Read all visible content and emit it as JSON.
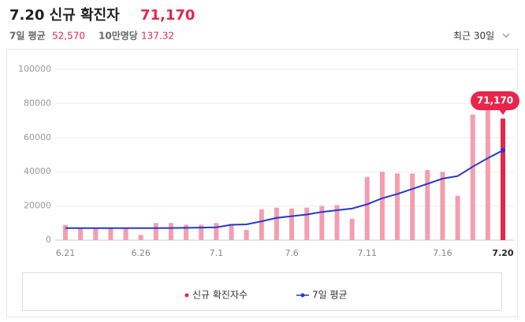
{
  "header": {
    "title": "7.20 신규 확진자",
    "cases": "71,170",
    "avg_label": "7일 평균",
    "avg_value": "52,570",
    "per100k_label": "10만명당",
    "per100k_value": "137.32",
    "range_select": "최근 30일"
  },
  "chart_data": {
    "type": "bar",
    "categories": [
      "6.21",
      null,
      null,
      null,
      null,
      "6.26",
      null,
      null,
      null,
      null,
      "7.1",
      null,
      null,
      null,
      null,
      "7.6",
      null,
      null,
      null,
      null,
      "7.11",
      null,
      null,
      null,
      null,
      "7.16",
      null,
      null,
      null,
      "7.20"
    ],
    "series": [
      {
        "name": "신규 확진자수",
        "color": "#f59db0",
        "highlight_color": "#e8254c",
        "values": [
          8900,
          7000,
          7000,
          7000,
          7000,
          3000,
          10000,
          10000,
          9000,
          9000,
          10000,
          9500,
          6000,
          18000,
          19000,
          18500,
          19000,
          20000,
          20500,
          12500,
          37000,
          40000,
          39000,
          39000,
          41000,
          40000,
          26000,
          73500,
          76000,
          71170
        ],
        "value_labels": [
          null,
          null,
          null,
          null,
          null,
          null,
          null,
          null,
          null,
          null,
          null,
          null,
          null,
          null,
          null,
          null,
          null,
          null,
          null,
          null,
          null,
          null,
          null,
          null,
          null,
          null,
          null,
          null,
          null,
          "71,170"
        ]
      },
      {
        "name": "7일 평균",
        "color": "#2639c8",
        "type": "line",
        "values": [
          7000,
          7000,
          7000,
          7000,
          7000,
          7000,
          7000,
          7100,
          7200,
          7300,
          7500,
          9000,
          9200,
          11000,
          13000,
          14000,
          15000,
          16500,
          17500,
          18500,
          21000,
          24500,
          27000,
          30000,
          33000,
          36000,
          37500,
          43000,
          48000,
          52570
        ]
      }
    ],
    "ylim": [
      0,
      100000
    ],
    "yticks": [
      0,
      20000,
      40000,
      60000,
      80000,
      100000
    ],
    "grid": true
  }
}
